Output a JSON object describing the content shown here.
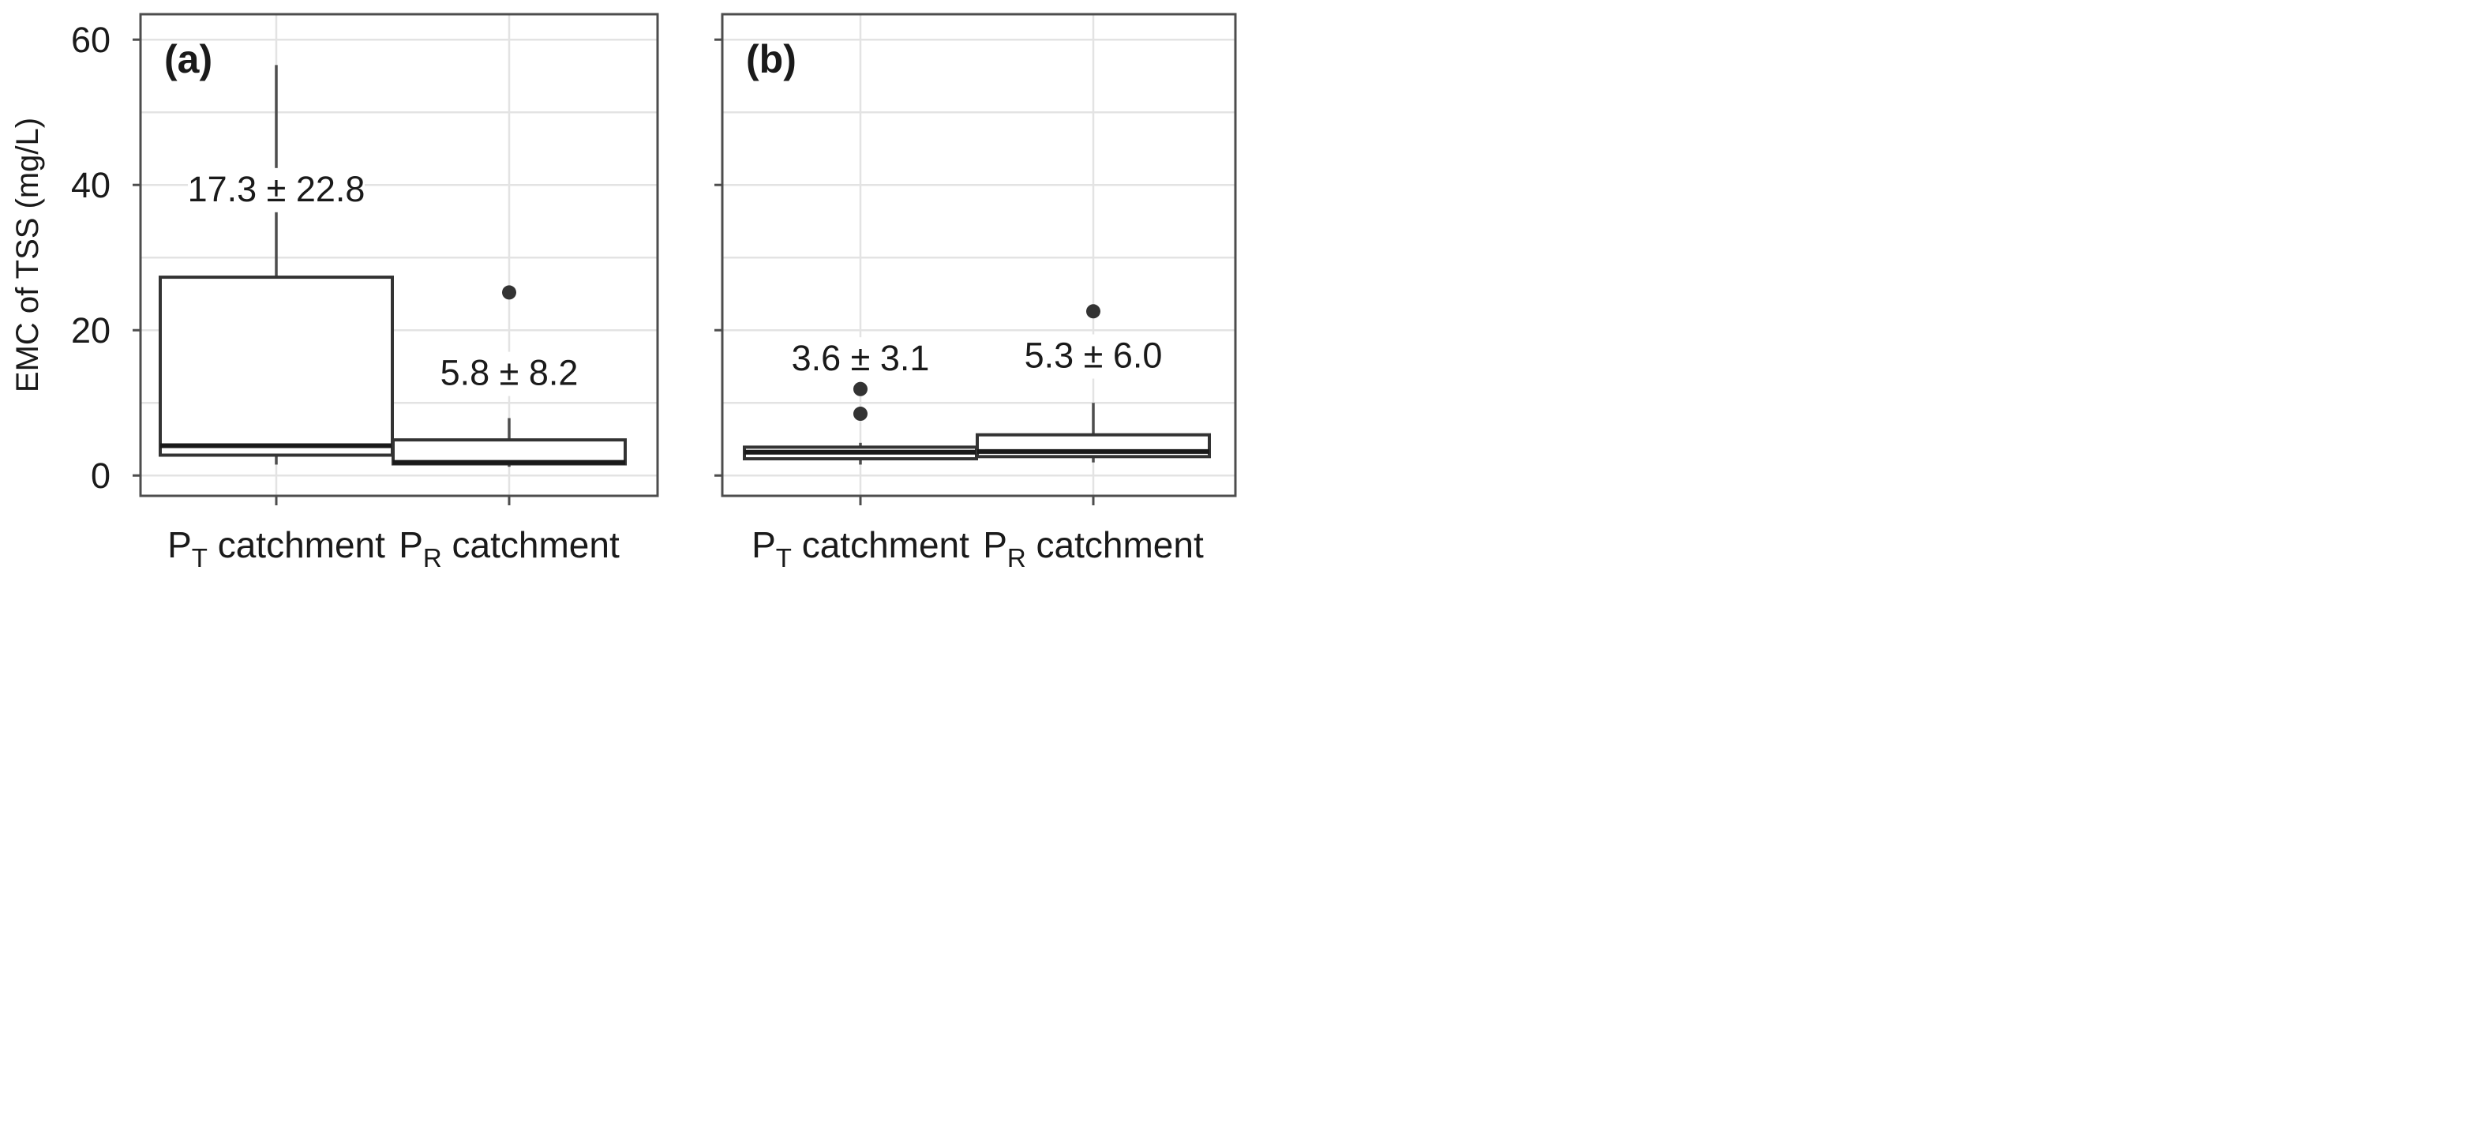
{
  "chart_data": {
    "type": "box",
    "ylabel": "EMC of TSS (mg/L)",
    "yticks": [
      0,
      20,
      40,
      60
    ],
    "ylim": [
      -2.8,
      63.5
    ],
    "grid": true,
    "shared_y_axis": true,
    "colors": {
      "frame": "#4d4d4d",
      "grid": "#e3e3e3",
      "box_fill": "#ffffff",
      "box_stroke": "#333333",
      "outlier": "#333333",
      "text": "#1a1a1a"
    },
    "panels": [
      {
        "tag": "(a)",
        "categories": [
          {
            "label_main": "P",
            "label_sub": "T",
            "label_rest": " catchment",
            "annotation": "17.3 ± 22.8",
            "whisker_low": 1.5,
            "q1": 2.8,
            "median": 4.1,
            "q3": 27.3,
            "whisker_high": 56.5,
            "outliers": [],
            "annotation_y": 39.5
          },
          {
            "label_main": "P",
            "label_sub": "R",
            "label_rest": " catchment",
            "annotation": "5.8 ± 8.2",
            "whisker_low": 1.2,
            "q1": 1.6,
            "median": 1.8,
            "q3": 4.9,
            "whisker_high": 7.9,
            "outliers": [
              25.2
            ],
            "annotation_y": 14.2
          }
        ]
      },
      {
        "tag": "(b)",
        "categories": [
          {
            "label_main": "P",
            "label_sub": "T",
            "label_rest": " catchment",
            "annotation": "3.6 ± 3.1",
            "whisker_low": 1.5,
            "q1": 2.3,
            "median": 3.2,
            "q3": 3.9,
            "whisker_high": 4.5,
            "outliers": [
              8.5,
              11.9
            ],
            "annotation_y": 16.2
          },
          {
            "label_main": "P",
            "label_sub": "R",
            "label_rest": " catchment",
            "annotation": "5.3 ± 6.0",
            "whisker_low": 1.8,
            "q1": 2.6,
            "median": 3.3,
            "q3": 5.6,
            "whisker_high": 10.0,
            "outliers": [
              22.6
            ],
            "annotation_y": 16.6
          }
        ]
      }
    ]
  }
}
